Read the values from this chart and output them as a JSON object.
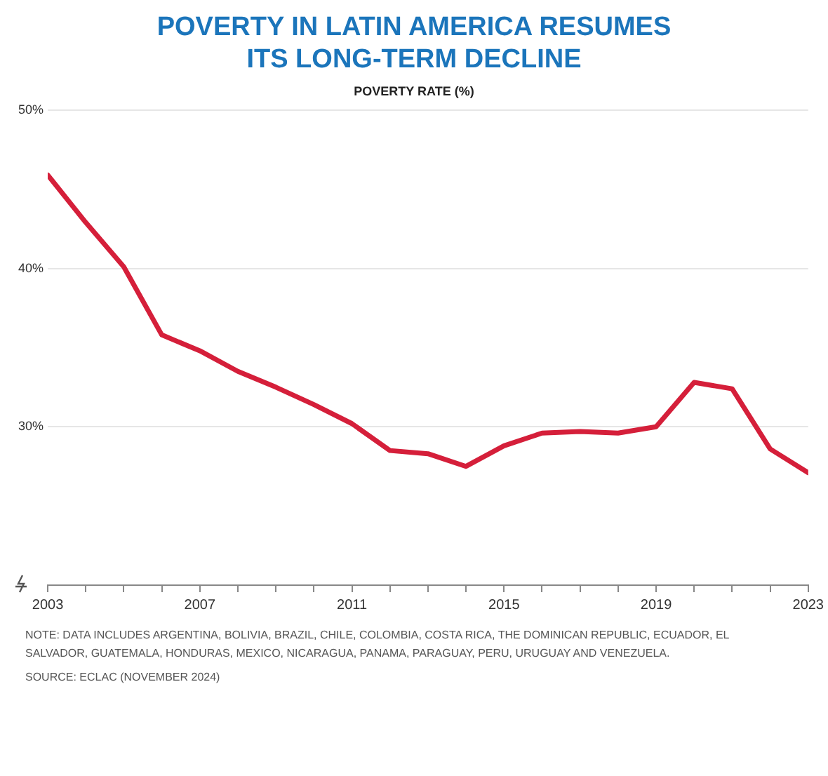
{
  "chart_data": {
    "type": "line",
    "title": "POVERTY IN LATIN AMERICA RESUMES ITS LONG-TERM DECLINE",
    "subtitle": "POVERTY RATE (%)",
    "x": [
      2003,
      2004,
      2005,
      2006,
      2007,
      2008,
      2009,
      2010,
      2011,
      2012,
      2013,
      2014,
      2015,
      2016,
      2017,
      2018,
      2019,
      2020,
      2021,
      2022,
      2023
    ],
    "series": [
      {
        "color": "#d51f3a",
        "values": [
          45.9,
          42.9,
          40.1,
          35.8,
          34.8,
          33.5,
          32.5,
          31.4,
          30.2,
          28.5,
          28.3,
          27.5,
          28.8,
          29.6,
          29.7,
          29.6,
          30.0,
          32.8,
          32.4,
          28.6,
          27.1
        ]
      }
    ],
    "xlim": [
      2003,
      2023
    ],
    "xticks": [
      2003,
      {
        "value": 2004,
        "label": null
      },
      {
        "value": 2005,
        "label": null
      },
      {
        "value": 2006,
        "label": null
      },
      2007,
      {
        "value": 2008,
        "label": null
      },
      {
        "value": 2009,
        "label": null
      },
      {
        "value": 2010,
        "label": null
      },
      2011,
      {
        "value": 2012,
        "label": null
      },
      {
        "value": 2013,
        "label": null
      },
      {
        "value": 2014,
        "label": null
      },
      2015,
      {
        "value": 2016,
        "label": null
      },
      {
        "value": 2017,
        "label": null
      },
      {
        "value": 2018,
        "label": null
      },
      2019,
      {
        "value": 2020,
        "label": null
      },
      {
        "value": 2021,
        "label": null
      },
      {
        "value": 2022,
        "label": null
      },
      2023
    ],
    "ylim": [
      20,
      50
    ],
    "yticks": [
      {
        "value": 30,
        "label": "30%"
      },
      {
        "value": 40,
        "label": "40%"
      },
      {
        "value": 50,
        "label": "50%"
      }
    ],
    "grid": "y",
    "legend": false,
    "marker": "none",
    "line_style": "solid",
    "annotations": [
      "NOTE: DATA INCLUDES ARGENTINA, BOLIVIA, BRAZIL, CHILE, COLOMBIA, COSTA RICA, THE DOMINICAN REPUBLIC, ECUADOR, EL SALVADOR, GUATEMALA, HONDURAS, MEXICO, NICARAGUA, PANAMA, PARAGUAY, PERU, URUGUAY AND VENEZUELA.",
      "SOURCE: ECLAC (NOVEMBER 2024)"
    ]
  }
}
